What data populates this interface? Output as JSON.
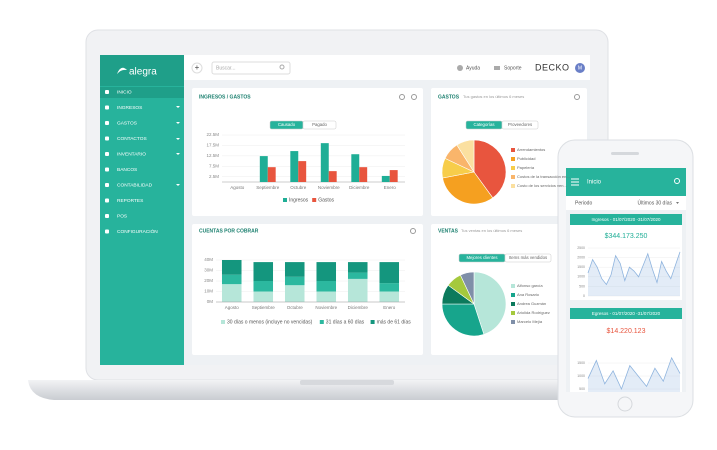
{
  "sidebar": {
    "logo": "alegra",
    "menu": [
      "INICIO",
      "INGRESOS",
      "GASTOS",
      "CONTACTOS",
      "INVENTARIO",
      "BANCOS",
      "CONTABILIDAD",
      "REPORTES",
      "POS",
      "CONFIGURACIÓN"
    ]
  },
  "topbar": {
    "add": "+",
    "search": "Buscar...",
    "help": "Ayuda",
    "support": "Soporte",
    "company": "DECKO",
    "avatar": "M"
  },
  "ingresos_gastos": {
    "title": "INGRESOS / GASTOS",
    "tabs": [
      "Causado",
      "Pagado"
    ],
    "chart": {
      "type": "bar",
      "categories": [
        "Agosto",
        "Septiembre",
        "Octubre",
        "Noviembre",
        "Diciembre",
        "Enero"
      ],
      "series": [
        {
          "name": "Ingresos",
          "color": "#1fae96",
          "values": [
            0,
            12.4,
            14.8,
            18.6,
            13.3,
            2.9
          ]
        },
        {
          "name": "Gastos",
          "color": "#e8553e",
          "values": [
            0,
            7.1,
            10,
            5.2,
            7.1,
            5.7
          ]
        }
      ],
      "ylim": [
        0,
        22.5
      ],
      "yticks": [
        {
          "value": 2.5,
          "label": "2.5M"
        },
        {
          "value": 7.5,
          "label": "7.5M"
        },
        {
          "value": 12.5,
          "label": "12.5M"
        },
        {
          "value": 17.5,
          "label": "17.5M"
        },
        {
          "value": 22.5,
          "label": "22.5M"
        }
      ],
      "grid": true
    }
  },
  "gastos": {
    "title": "GASTOS",
    "subtitle": "Tus gastos en los últimos 6 meses",
    "tabs": [
      "Categorías",
      "Proveedores"
    ],
    "chart": {
      "type": "pie",
      "categories": [
        "Arrendamientos",
        "Publicidad",
        "Papelería",
        "Costos de la transacción en...",
        "Costo de los servicios ven..."
      ],
      "values": [
        40,
        32,
        10,
        9,
        9
      ],
      "colors": [
        "#e8553e",
        "#f5a020",
        "#f7cd4a",
        "#f9b56b",
        "#fbe0a0"
      ]
    }
  },
  "cuentas": {
    "title": "CUENTAS POR COBRAR",
    "chart": {
      "type": "stacked",
      "categories": [
        "Agosto",
        "Septiembre",
        "Octubre",
        "Noviembre",
        "Diciembre",
        "Enero"
      ],
      "series": [
        {
          "name": "30 días o menos (incluye no vencidas)",
          "color": "#b6e6d9",
          "values": [
            17,
            10,
            16,
            10,
            22,
            10
          ]
        },
        {
          "name": "31 días a 60 días",
          "color": "#2cb89f",
          "values": [
            9,
            10,
            8,
            10,
            6,
            8
          ]
        },
        {
          "name": "más de 61 días",
          "color": "#14967e",
          "values": [
            14,
            18,
            14,
            18,
            10,
            20
          ]
        }
      ],
      "ylim": [
        0,
        40
      ],
      "yticks": [
        {
          "value": 0,
          "label": "0M"
        },
        {
          "value": 10,
          "label": "10M"
        },
        {
          "value": 20,
          "label": "20M"
        },
        {
          "value": 30,
          "label": "30M"
        },
        {
          "value": 40,
          "label": "40M"
        }
      ],
      "grid": true
    }
  },
  "ventas": {
    "title": "VENTAS",
    "subtitle": "Tus ventas en los últimos 6 meses",
    "tabs": [
      "Mejores clientes",
      "Items más vendidos"
    ],
    "chart": {
      "type": "pie",
      "categories": [
        "Alfonso garcía",
        "Ana Rosario",
        "Andrea Guzmán",
        "Ariolida Rodríguez",
        "Marcelo Mejía"
      ],
      "values": [
        45,
        30,
        10,
        8,
        7
      ],
      "colors": [
        "#b6e6d9",
        "#17a58c",
        "#0c7a5c",
        "#a5c93d",
        "#7f8fa8"
      ]
    }
  },
  "phone": {
    "title": "Inicio",
    "period_label": "Periodo",
    "period": "Últimos 30 días",
    "ingresos": {
      "header": "Ingresos - 01/07/2020 -31/07/2020",
      "total": "$344.173.250",
      "chart": {
        "type": "area",
        "color": "#8fb4de",
        "values": [
          1200,
          1900,
          1500,
          900,
          600,
          1100,
          2100,
          1700,
          800,
          1500,
          1300,
          1000,
          1600,
          2200,
          1400,
          700,
          1800,
          1300,
          900,
          1600,
          2300
        ],
        "ylim": [
          0,
          2500
        ],
        "yticks": [
          0,
          500,
          1000,
          1500,
          2000,
          2500
        ],
        "grid": true
      }
    },
    "egresos": {
      "header": "Egresos - 01/07/2020 -31/07/2020",
      "total": "$14.220.123",
      "chart": {
        "type": "area",
        "color": "#8fb4de",
        "values": [
          900,
          1600,
          700,
          1200,
          500,
          1400,
          1000,
          600,
          1300,
          800,
          1700,
          1100
        ],
        "ylim": [
          0,
          2000
        ],
        "yticks": [
          500,
          1000,
          1500
        ],
        "grid": true
      }
    }
  }
}
